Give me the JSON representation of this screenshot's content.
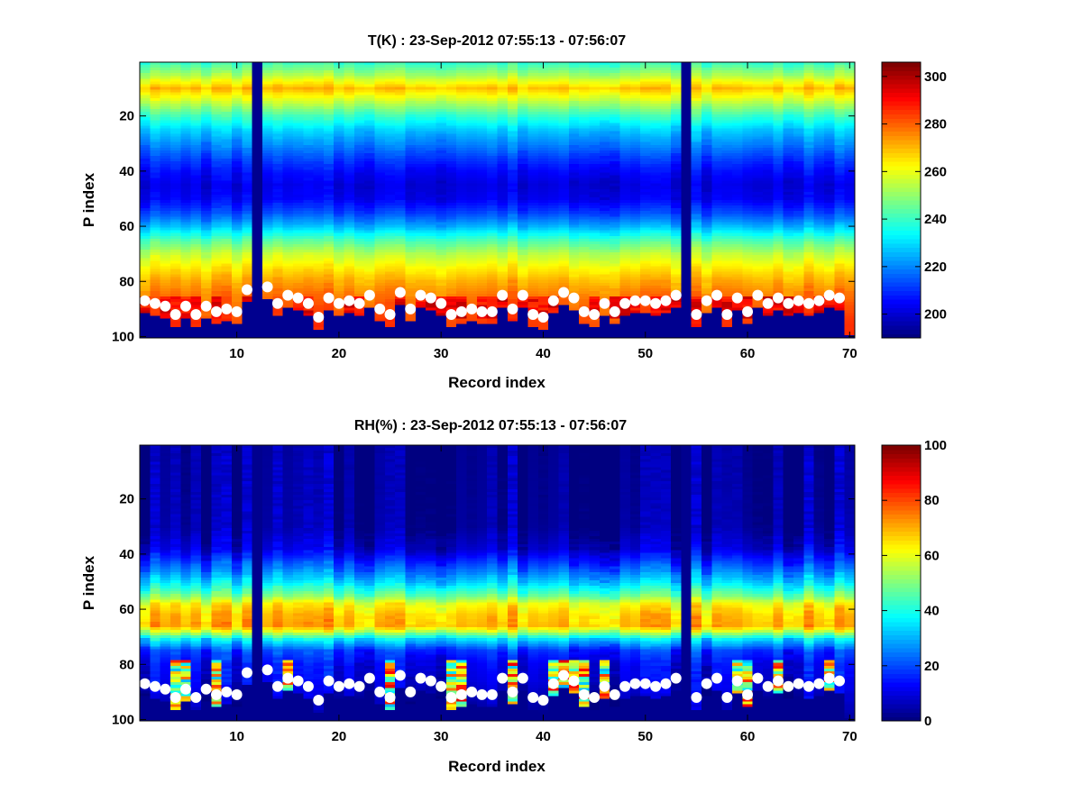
{
  "chart_data": [
    {
      "type": "heatmap",
      "title": "T(K) : 23-Sep-2012 07:55:13 - 07:56:07",
      "xlabel": "Record index",
      "ylabel": "P index",
      "xlim": [
        1,
        70
      ],
      "ylim": [
        100,
        1
      ],
      "y_reversed": true,
      "x_ticks": [
        10,
        20,
        30,
        40,
        50,
        60,
        70
      ],
      "y_ticks": [
        20,
        40,
        60,
        80,
        100
      ],
      "colorbar": {
        "min": 190,
        "max": 306,
        "ticks": [
          200,
          220,
          240,
          260,
          280,
          300
        ],
        "colormap": "jet"
      },
      "profile": [
        {
          "p": 1,
          "value": 240
        },
        {
          "p": 5,
          "value": 252
        },
        {
          "p": 10,
          "value": 270
        },
        {
          "p": 15,
          "value": 255
        },
        {
          "p": 20,
          "value": 240
        },
        {
          "p": 25,
          "value": 228
        },
        {
          "p": 30,
          "value": 220
        },
        {
          "p": 35,
          "value": 212
        },
        {
          "p": 40,
          "value": 205
        },
        {
          "p": 45,
          "value": 201
        },
        {
          "p": 50,
          "value": 203
        },
        {
          "p": 55,
          "value": 212
        },
        {
          "p": 60,
          "value": 225
        },
        {
          "p": 65,
          "value": 242
        },
        {
          "p": 70,
          "value": 255
        },
        {
          "p": 75,
          "value": 264
        },
        {
          "p": 80,
          "value": 272
        },
        {
          "p": 85,
          "value": 278
        },
        {
          "p": 90,
          "value": 282
        },
        {
          "p": 95,
          "value": 285
        },
        {
          "p": 100,
          "value": 286
        }
      ],
      "overlay_bands": [
        {
          "p_from": 86,
          "p_to": 93,
          "value_from": 285,
          "value_to": 300
        }
      ],
      "missing_records": [
        12,
        54
      ]
    },
    {
      "type": "heatmap",
      "title": "RH(%) : 23-Sep-2012 07:55:13 - 07:56:07",
      "xlabel": "Record index",
      "ylabel": "P index",
      "xlim": [
        1,
        70
      ],
      "ylim": [
        100,
        1
      ],
      "y_reversed": true,
      "x_ticks": [
        10,
        20,
        30,
        40,
        50,
        60,
        70
      ],
      "y_ticks": [
        20,
        40,
        60,
        80,
        100
      ],
      "colorbar": {
        "min": 0,
        "max": 100,
        "ticks": [
          0,
          20,
          40,
          60,
          80,
          100
        ],
        "colormap": "jet"
      },
      "profile": [
        {
          "p": 1,
          "value": 2
        },
        {
          "p": 30,
          "value": 3
        },
        {
          "p": 38,
          "value": 8
        },
        {
          "p": 45,
          "value": 22
        },
        {
          "p": 50,
          "value": 33
        },
        {
          "p": 55,
          "value": 48
        },
        {
          "p": 58,
          "value": 62
        },
        {
          "p": 62,
          "value": 68
        },
        {
          "p": 66,
          "value": 70
        },
        {
          "p": 68,
          "value": 58
        },
        {
          "p": 71,
          "value": 35
        },
        {
          "p": 75,
          "value": 18
        },
        {
          "p": 80,
          "value": 12
        },
        {
          "p": 86,
          "value": 10
        },
        {
          "p": 92,
          "value": 6
        },
        {
          "p": 100,
          "value": 2
        }
      ],
      "missing_records": [
        12,
        54
      ]
    }
  ],
  "surface_points": {
    "records": [
      1,
      2,
      3,
      4,
      5,
      6,
      7,
      8,
      9,
      10,
      11,
      13,
      14,
      15,
      16,
      17,
      18,
      19,
      20,
      21,
      22,
      23,
      24,
      25,
      26,
      27,
      28,
      29,
      30,
      31,
      32,
      33,
      34,
      35,
      36,
      37,
      38,
      39,
      40,
      41,
      42,
      43,
      44,
      45,
      46,
      47,
      48,
      49,
      50,
      51,
      52,
      53,
      55,
      56,
      57,
      58,
      59,
      60,
      61,
      62,
      63,
      64,
      65,
      66,
      67,
      68,
      69
    ],
    "p_index": [
      87,
      88,
      89,
      92,
      89,
      92,
      89,
      91,
      90,
      91,
      83,
      82,
      88,
      85,
      86,
      88,
      93,
      86,
      88,
      87,
      88,
      85,
      90,
      92,
      84,
      90,
      85,
      86,
      88,
      92,
      91,
      90,
      91,
      91,
      85,
      90,
      85,
      92,
      93,
      87,
      84,
      86,
      91,
      92,
      88,
      91,
      88,
      87,
      87,
      88,
      87,
      85,
      92,
      87,
      85,
      92,
      86,
      91,
      85,
      88,
      86,
      88,
      87,
      88,
      87,
      85,
      86
    ],
    "color": "#ffffff"
  },
  "colors": {
    "missing": "#00008f",
    "figure_bg": "#ffffff"
  }
}
